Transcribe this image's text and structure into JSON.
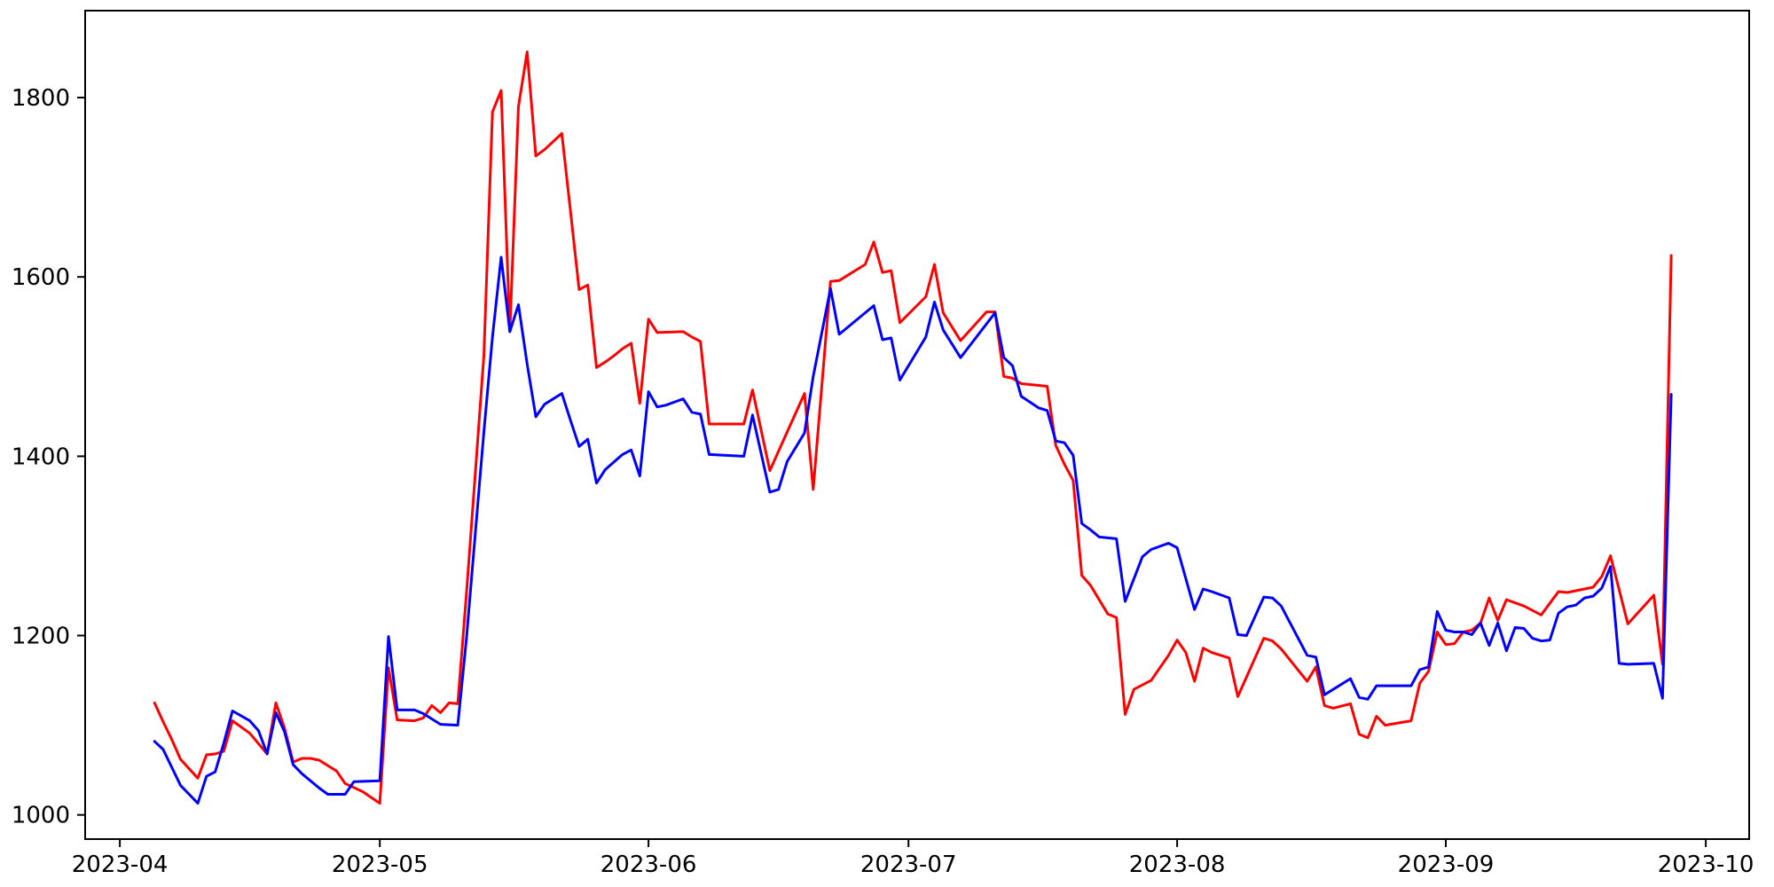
{
  "chart_data": {
    "type": "line",
    "title": "",
    "xlabel": "",
    "ylabel": "",
    "grid": false,
    "legend": null,
    "background_color": "#ffffff",
    "axis_color": "#000000",
    "x_axis": {
      "lim": [
        "2023-03-28",
        "2023-10-06"
      ],
      "ticks": [
        {
          "label": "2023-04",
          "date": "2023-04-01"
        },
        {
          "label": "2023-05",
          "date": "2023-05-01"
        },
        {
          "label": "2023-06",
          "date": "2023-06-01"
        },
        {
          "label": "2023-07",
          "date": "2023-07-01"
        },
        {
          "label": "2023-08",
          "date": "2023-08-01"
        },
        {
          "label": "2023-09",
          "date": "2023-09-01"
        },
        {
          "label": "2023-10",
          "date": "2023-10-01"
        }
      ]
    },
    "y_axis": {
      "lim": [
        973,
        1897
      ],
      "ticks": [
        1000,
        1200,
        1400,
        1600,
        1800
      ]
    },
    "series": [
      {
        "name": "red-series",
        "color": "#ff0000",
        "points": [
          [
            "2023-04-05",
            1125
          ],
          [
            "2023-04-06",
            1104
          ],
          [
            "2023-04-07",
            1084
          ],
          [
            "2023-04-08",
            1062
          ],
          [
            "2023-04-10",
            1041
          ],
          [
            "2023-04-11",
            1067
          ],
          [
            "2023-04-12",
            1068
          ],
          [
            "2023-04-13",
            1071
          ],
          [
            "2023-04-14",
            1105
          ],
          [
            "2023-04-16",
            1091
          ],
          [
            "2023-04-18",
            1068
          ],
          [
            "2023-04-19",
            1125
          ],
          [
            "2023-04-20",
            1097
          ],
          [
            "2023-04-21",
            1059
          ],
          [
            "2023-04-22",
            1063
          ],
          [
            "2023-04-23",
            1063
          ],
          [
            "2023-04-24",
            1061
          ],
          [
            "2023-04-25",
            1055
          ],
          [
            "2023-04-26",
            1049
          ],
          [
            "2023-04-27",
            1035
          ],
          [
            "2023-04-29",
            1026
          ],
          [
            "2023-05-01",
            1013
          ],
          [
            "2023-05-02",
            1164
          ],
          [
            "2023-05-03",
            1106
          ],
          [
            "2023-05-05",
            1105
          ],
          [
            "2023-05-06",
            1108
          ],
          [
            "2023-05-07",
            1122
          ],
          [
            "2023-05-08",
            1114
          ],
          [
            "2023-05-09",
            1125
          ],
          [
            "2023-05-10",
            1124
          ],
          [
            "2023-05-11",
            1247
          ],
          [
            "2023-05-12",
            1379
          ],
          [
            "2023-05-13",
            1512
          ],
          [
            "2023-05-14",
            1784
          ],
          [
            "2023-05-15",
            1808
          ],
          [
            "2023-05-16",
            1539
          ],
          [
            "2023-05-17",
            1790
          ],
          [
            "2023-05-18",
            1851
          ],
          [
            "2023-05-19",
            1735
          ],
          [
            "2023-05-20",
            1742
          ],
          [
            "2023-05-22",
            1760
          ],
          [
            "2023-05-23",
            1673
          ],
          [
            "2023-05-24",
            1586
          ],
          [
            "2023-05-25",
            1591
          ],
          [
            "2023-05-26",
            1499
          ],
          [
            "2023-05-27",
            1505
          ],
          [
            "2023-05-28",
            1512
          ],
          [
            "2023-05-29",
            1520
          ],
          [
            "2023-05-30",
            1526
          ],
          [
            "2023-05-31",
            1459
          ],
          [
            "2023-06-01",
            1553
          ],
          [
            "2023-06-02",
            1538
          ],
          [
            "2023-06-05",
            1539
          ],
          [
            "2023-06-06",
            1533
          ],
          [
            "2023-06-07",
            1528
          ],
          [
            "2023-06-08",
            1436
          ],
          [
            "2023-06-09",
            1436
          ],
          [
            "2023-06-12",
            1436
          ],
          [
            "2023-06-13",
            1474
          ],
          [
            "2023-06-15",
            1384
          ],
          [
            "2023-06-17",
            1427
          ],
          [
            "2023-06-19",
            1470
          ],
          [
            "2023-06-20",
            1363
          ],
          [
            "2023-06-22",
            1595
          ],
          [
            "2023-06-23",
            1596
          ],
          [
            "2023-06-26",
            1614
          ],
          [
            "2023-06-27",
            1639
          ],
          [
            "2023-06-28",
            1605
          ],
          [
            "2023-06-29",
            1607
          ],
          [
            "2023-06-30",
            1549
          ],
          [
            "2023-07-03",
            1578
          ],
          [
            "2023-07-04",
            1614
          ],
          [
            "2023-07-05",
            1560
          ],
          [
            "2023-07-07",
            1529
          ],
          [
            "2023-07-10",
            1561
          ],
          [
            "2023-07-11",
            1561
          ],
          [
            "2023-07-12",
            1489
          ],
          [
            "2023-07-13",
            1487
          ],
          [
            "2023-07-14",
            1481
          ],
          [
            "2023-07-17",
            1478
          ],
          [
            "2023-07-18",
            1412
          ],
          [
            "2023-07-19",
            1391
          ],
          [
            "2023-07-20",
            1373
          ],
          [
            "2023-07-21",
            1267
          ],
          [
            "2023-07-22",
            1256
          ],
          [
            "2023-07-24",
            1224
          ],
          [
            "2023-07-25",
            1220
          ],
          [
            "2023-07-26",
            1112
          ],
          [
            "2023-07-27",
            1140
          ],
          [
            "2023-07-29",
            1150
          ],
          [
            "2023-07-31",
            1178
          ],
          [
            "2023-08-01",
            1195
          ],
          [
            "2023-08-02",
            1181
          ],
          [
            "2023-08-03",
            1149
          ],
          [
            "2023-08-04",
            1186
          ],
          [
            "2023-08-05",
            1181
          ],
          [
            "2023-08-07",
            1175
          ],
          [
            "2023-08-08",
            1132
          ],
          [
            "2023-08-11",
            1197
          ],
          [
            "2023-08-12",
            1194
          ],
          [
            "2023-08-13",
            1185
          ],
          [
            "2023-08-16",
            1149
          ],
          [
            "2023-08-17",
            1165
          ],
          [
            "2023-08-18",
            1122
          ],
          [
            "2023-08-19",
            1119
          ],
          [
            "2023-08-21",
            1124
          ],
          [
            "2023-08-22",
            1090
          ],
          [
            "2023-08-23",
            1086
          ],
          [
            "2023-08-24",
            1110
          ],
          [
            "2023-08-25",
            1100
          ],
          [
            "2023-08-28",
            1105
          ],
          [
            "2023-08-29",
            1147
          ],
          [
            "2023-08-30",
            1160
          ],
          [
            "2023-08-31",
            1204
          ],
          [
            "2023-09-01",
            1190
          ],
          [
            "2023-09-02",
            1191
          ],
          [
            "2023-09-03",
            1204
          ],
          [
            "2023-09-04",
            1206
          ],
          [
            "2023-09-05",
            1214
          ],
          [
            "2023-09-06",
            1242
          ],
          [
            "2023-09-07",
            1217
          ],
          [
            "2023-09-08",
            1240
          ],
          [
            "2023-09-10",
            1233
          ],
          [
            "2023-09-11",
            1228
          ],
          [
            "2023-09-12",
            1223
          ],
          [
            "2023-09-14",
            1249
          ],
          [
            "2023-09-15",
            1248
          ],
          [
            "2023-09-16",
            1250
          ],
          [
            "2023-09-17",
            1252
          ],
          [
            "2023-09-18",
            1254
          ],
          [
            "2023-09-19",
            1266
          ],
          [
            "2023-09-20",
            1289
          ],
          [
            "2023-09-22",
            1213
          ],
          [
            "2023-09-25",
            1245
          ],
          [
            "2023-09-26",
            1168
          ],
          [
            "2023-09-27",
            1624
          ]
        ]
      },
      {
        "name": "blue-series",
        "color": "#0000ff",
        "points": [
          [
            "2023-04-05",
            1082
          ],
          [
            "2023-04-06",
            1073
          ],
          [
            "2023-04-07",
            1053
          ],
          [
            "2023-04-08",
            1033
          ],
          [
            "2023-04-10",
            1013
          ],
          [
            "2023-04-11",
            1043
          ],
          [
            "2023-04-12",
            1048
          ],
          [
            "2023-04-13",
            1080
          ],
          [
            "2023-04-14",
            1116
          ],
          [
            "2023-04-16",
            1105
          ],
          [
            "2023-04-17",
            1094
          ],
          [
            "2023-04-18",
            1068
          ],
          [
            "2023-04-19",
            1114
          ],
          [
            "2023-04-20",
            1093
          ],
          [
            "2023-04-21",
            1056
          ],
          [
            "2023-04-22",
            1046
          ],
          [
            "2023-04-24",
            1030
          ],
          [
            "2023-04-25",
            1023
          ],
          [
            "2023-04-27",
            1023
          ],
          [
            "2023-04-28",
            1037
          ],
          [
            "2023-05-01",
            1038
          ],
          [
            "2023-05-02",
            1199
          ],
          [
            "2023-05-03",
            1117
          ],
          [
            "2023-05-05",
            1117
          ],
          [
            "2023-05-06",
            1113
          ],
          [
            "2023-05-07",
            1107
          ],
          [
            "2023-05-08",
            1101
          ],
          [
            "2023-05-10",
            1100
          ],
          [
            "2023-05-11",
            1197
          ],
          [
            "2023-05-12",
            1312
          ],
          [
            "2023-05-13",
            1427
          ],
          [
            "2023-05-14",
            1533
          ],
          [
            "2023-05-15",
            1622
          ],
          [
            "2023-05-16",
            1539
          ],
          [
            "2023-05-17",
            1569
          ],
          [
            "2023-05-18",
            1503
          ],
          [
            "2023-05-19",
            1444
          ],
          [
            "2023-05-20",
            1458
          ],
          [
            "2023-05-22",
            1470
          ],
          [
            "2023-05-23",
            1440
          ],
          [
            "2023-05-24",
            1411
          ],
          [
            "2023-05-25",
            1419
          ],
          [
            "2023-05-26",
            1370
          ],
          [
            "2023-05-27",
            1385
          ],
          [
            "2023-05-29",
            1402
          ],
          [
            "2023-05-30",
            1407
          ],
          [
            "2023-05-31",
            1378
          ],
          [
            "2023-06-01",
            1472
          ],
          [
            "2023-06-02",
            1455
          ],
          [
            "2023-06-03",
            1457
          ],
          [
            "2023-06-05",
            1464
          ],
          [
            "2023-06-06",
            1449
          ],
          [
            "2023-06-07",
            1447
          ],
          [
            "2023-06-08",
            1402
          ],
          [
            "2023-06-12",
            1400
          ],
          [
            "2023-06-13",
            1446
          ],
          [
            "2023-06-15",
            1360
          ],
          [
            "2023-06-16",
            1363
          ],
          [
            "2023-06-17",
            1394
          ],
          [
            "2023-06-19",
            1426
          ],
          [
            "2023-06-20",
            1489
          ],
          [
            "2023-06-22",
            1587
          ],
          [
            "2023-06-23",
            1536
          ],
          [
            "2023-06-27",
            1568
          ],
          [
            "2023-06-28",
            1530
          ],
          [
            "2023-06-29",
            1532
          ],
          [
            "2023-06-30",
            1485
          ],
          [
            "2023-07-03",
            1533
          ],
          [
            "2023-07-04",
            1572
          ],
          [
            "2023-07-05",
            1541
          ],
          [
            "2023-07-07",
            1510
          ],
          [
            "2023-07-11",
            1560
          ],
          [
            "2023-07-12",
            1510
          ],
          [
            "2023-07-13",
            1501
          ],
          [
            "2023-07-14",
            1467
          ],
          [
            "2023-07-16",
            1454
          ],
          [
            "2023-07-17",
            1451
          ],
          [
            "2023-07-18",
            1417
          ],
          [
            "2023-07-19",
            1415
          ],
          [
            "2023-07-20",
            1401
          ],
          [
            "2023-07-21",
            1325
          ],
          [
            "2023-07-22",
            1318
          ],
          [
            "2023-07-23",
            1310
          ],
          [
            "2023-07-25",
            1308
          ],
          [
            "2023-07-26",
            1238
          ],
          [
            "2023-07-28",
            1288
          ],
          [
            "2023-07-29",
            1296
          ],
          [
            "2023-07-31",
            1303
          ],
          [
            "2023-08-01",
            1298
          ],
          [
            "2023-08-03",
            1229
          ],
          [
            "2023-08-04",
            1252
          ],
          [
            "2023-08-05",
            1249
          ],
          [
            "2023-08-07",
            1242
          ],
          [
            "2023-08-08",
            1201
          ],
          [
            "2023-08-09",
            1200
          ],
          [
            "2023-08-11",
            1243
          ],
          [
            "2023-08-12",
            1242
          ],
          [
            "2023-08-13",
            1233
          ],
          [
            "2023-08-16",
            1178
          ],
          [
            "2023-08-17",
            1176
          ],
          [
            "2023-08-18",
            1134
          ],
          [
            "2023-08-21",
            1152
          ],
          [
            "2023-08-22",
            1131
          ],
          [
            "2023-08-23",
            1129
          ],
          [
            "2023-08-24",
            1144
          ],
          [
            "2023-08-28",
            1144
          ],
          [
            "2023-08-29",
            1162
          ],
          [
            "2023-08-30",
            1165
          ],
          [
            "2023-08-31",
            1227
          ],
          [
            "2023-09-01",
            1206
          ],
          [
            "2023-09-02",
            1204
          ],
          [
            "2023-09-03",
            1204
          ],
          [
            "2023-09-04",
            1201
          ],
          [
            "2023-09-05",
            1214
          ],
          [
            "2023-09-06",
            1189
          ],
          [
            "2023-09-07",
            1214
          ],
          [
            "2023-09-08",
            1183
          ],
          [
            "2023-09-09",
            1209
          ],
          [
            "2023-09-10",
            1208
          ],
          [
            "2023-09-11",
            1197
          ],
          [
            "2023-09-12",
            1194
          ],
          [
            "2023-09-13",
            1195
          ],
          [
            "2023-09-14",
            1225
          ],
          [
            "2023-09-15",
            1232
          ],
          [
            "2023-09-16",
            1234
          ],
          [
            "2023-09-17",
            1242
          ],
          [
            "2023-09-18",
            1244
          ],
          [
            "2023-09-19",
            1253
          ],
          [
            "2023-09-20",
            1277
          ],
          [
            "2023-09-21",
            1169
          ],
          [
            "2023-09-22",
            1168
          ],
          [
            "2023-09-25",
            1169
          ],
          [
            "2023-09-26",
            1130
          ],
          [
            "2023-09-27",
            1469
          ]
        ]
      }
    ]
  }
}
